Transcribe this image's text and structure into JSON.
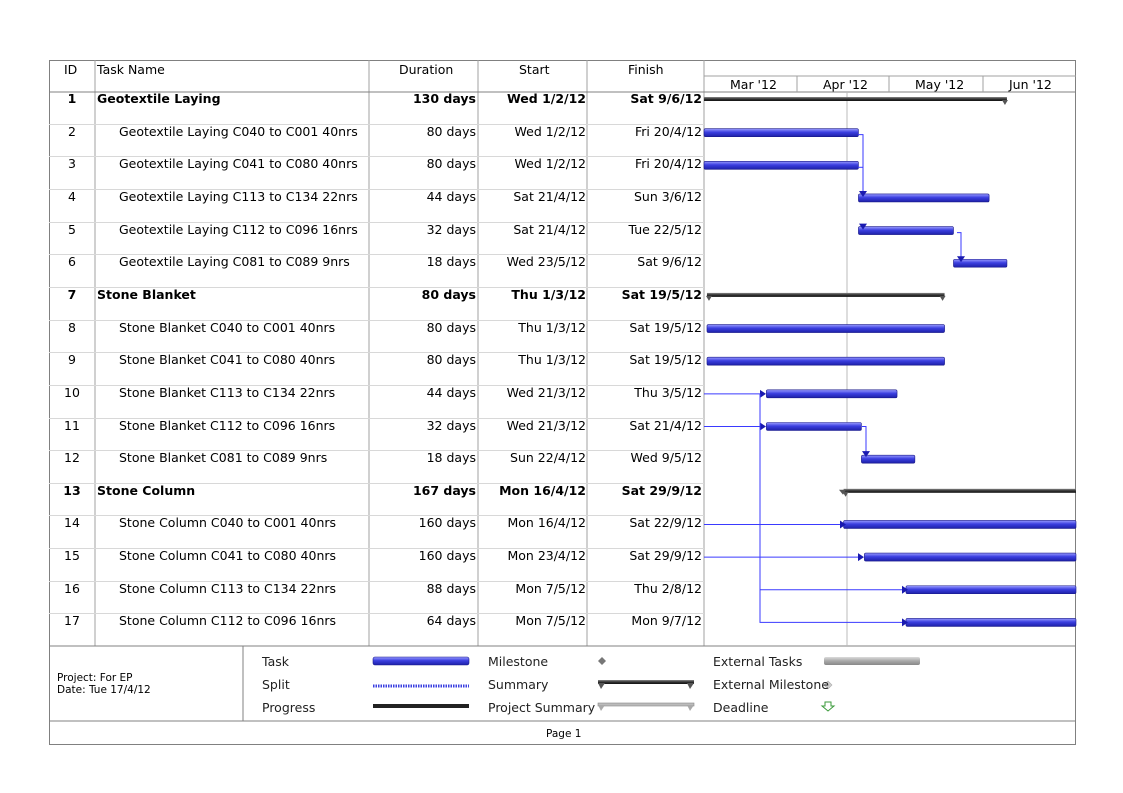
{
  "headers": {
    "id": "ID",
    "task_name": "Task Name",
    "duration": "Duration",
    "start": "Start",
    "finish": "Finish"
  },
  "timescale": [
    "Mar '12",
    "Apr '12",
    "May '12",
    "Jun '12"
  ],
  "tasks": [
    {
      "id": "1",
      "name": "Geotextile Laying",
      "duration": "130 days",
      "start": "Wed 1/2/12",
      "finish": "Sat 9/6/12",
      "summary": true
    },
    {
      "id": "2",
      "name": "Geotextile Laying C040 to C001 40nrs",
      "duration": "80 days",
      "start": "Wed 1/2/12",
      "finish": "Fri 20/4/12",
      "summary": false
    },
    {
      "id": "3",
      "name": "Geotextile Laying C041 to C080 40nrs",
      "duration": "80 days",
      "start": "Wed 1/2/12",
      "finish": "Fri 20/4/12",
      "summary": false
    },
    {
      "id": "4",
      "name": "Geotextile Laying C113 to C134 22nrs",
      "duration": "44 days",
      "start": "Sat 21/4/12",
      "finish": "Sun 3/6/12",
      "summary": false
    },
    {
      "id": "5",
      "name": "Geotextile Laying C112 to C096 16nrs",
      "duration": "32 days",
      "start": "Sat 21/4/12",
      "finish": "Tue 22/5/12",
      "summary": false
    },
    {
      "id": "6",
      "name": "Geotextile Laying C081 to C089 9nrs",
      "duration": "18 days",
      "start": "Wed 23/5/12",
      "finish": "Sat 9/6/12",
      "summary": false
    },
    {
      "id": "7",
      "name": "Stone Blanket",
      "duration": "80 days",
      "start": "Thu 1/3/12",
      "finish": "Sat 19/5/12",
      "summary": true
    },
    {
      "id": "8",
      "name": "Stone Blanket C040 to C001 40nrs",
      "duration": "80 days",
      "start": "Thu 1/3/12",
      "finish": "Sat 19/5/12",
      "summary": false
    },
    {
      "id": "9",
      "name": "Stone Blanket C041 to C080 40nrs",
      "duration": "80 days",
      "start": "Thu 1/3/12",
      "finish": "Sat 19/5/12",
      "summary": false
    },
    {
      "id": "10",
      "name": "Stone Blanket C113 to C134 22nrs",
      "duration": "44 days",
      "start": "Wed 21/3/12",
      "finish": "Thu 3/5/12",
      "summary": false
    },
    {
      "id": "11",
      "name": "Stone Blanket C112 to C096 16nrs",
      "duration": "32 days",
      "start": "Wed 21/3/12",
      "finish": "Sat 21/4/12",
      "summary": false
    },
    {
      "id": "12",
      "name": "Stone Blanket C081 to C089 9nrs",
      "duration": "18 days",
      "start": "Sun 22/4/12",
      "finish": "Wed 9/5/12",
      "summary": false
    },
    {
      "id": "13",
      "name": "Stone Column",
      "duration": "167 days",
      "start": "Mon 16/4/12",
      "finish": "Sat 29/9/12",
      "summary": true
    },
    {
      "id": "14",
      "name": "Stone Column C040 to C001 40nrs",
      "duration": "160 days",
      "start": "Mon 16/4/12",
      "finish": "Sat 22/9/12",
      "summary": false
    },
    {
      "id": "15",
      "name": "Stone Column C041 to C080 40nrs",
      "duration": "160 days",
      "start": "Mon 23/4/12",
      "finish": "Sat 29/9/12",
      "summary": false
    },
    {
      "id": "16",
      "name": "Stone Column C113 to C134 22nrs",
      "duration": "88 days",
      "start": "Mon 7/5/12",
      "finish": "Thu 2/8/12",
      "summary": false
    },
    {
      "id": "17",
      "name": "Stone Column C112 to C096 16nrs",
      "duration": "64 days",
      "start": "Mon 7/5/12",
      "finish": "Mon 9/7/12",
      "summary": false
    }
  ],
  "legend": {
    "project_label": "Project: For EP",
    "date_label": "Date: Tue 17/4/12",
    "items": [
      "Task",
      "Split",
      "Progress",
      "Milestone",
      "Summary",
      "Project Summary",
      "External Tasks",
      "External Milestone",
      "Deadline"
    ]
  },
  "footer": {
    "page": "Page 1"
  },
  "colors": {
    "task_bar": "#3b3fe0",
    "summary_bar": "#333333",
    "link": "#3a3aff",
    "grid": "#d8d8d8"
  }
}
